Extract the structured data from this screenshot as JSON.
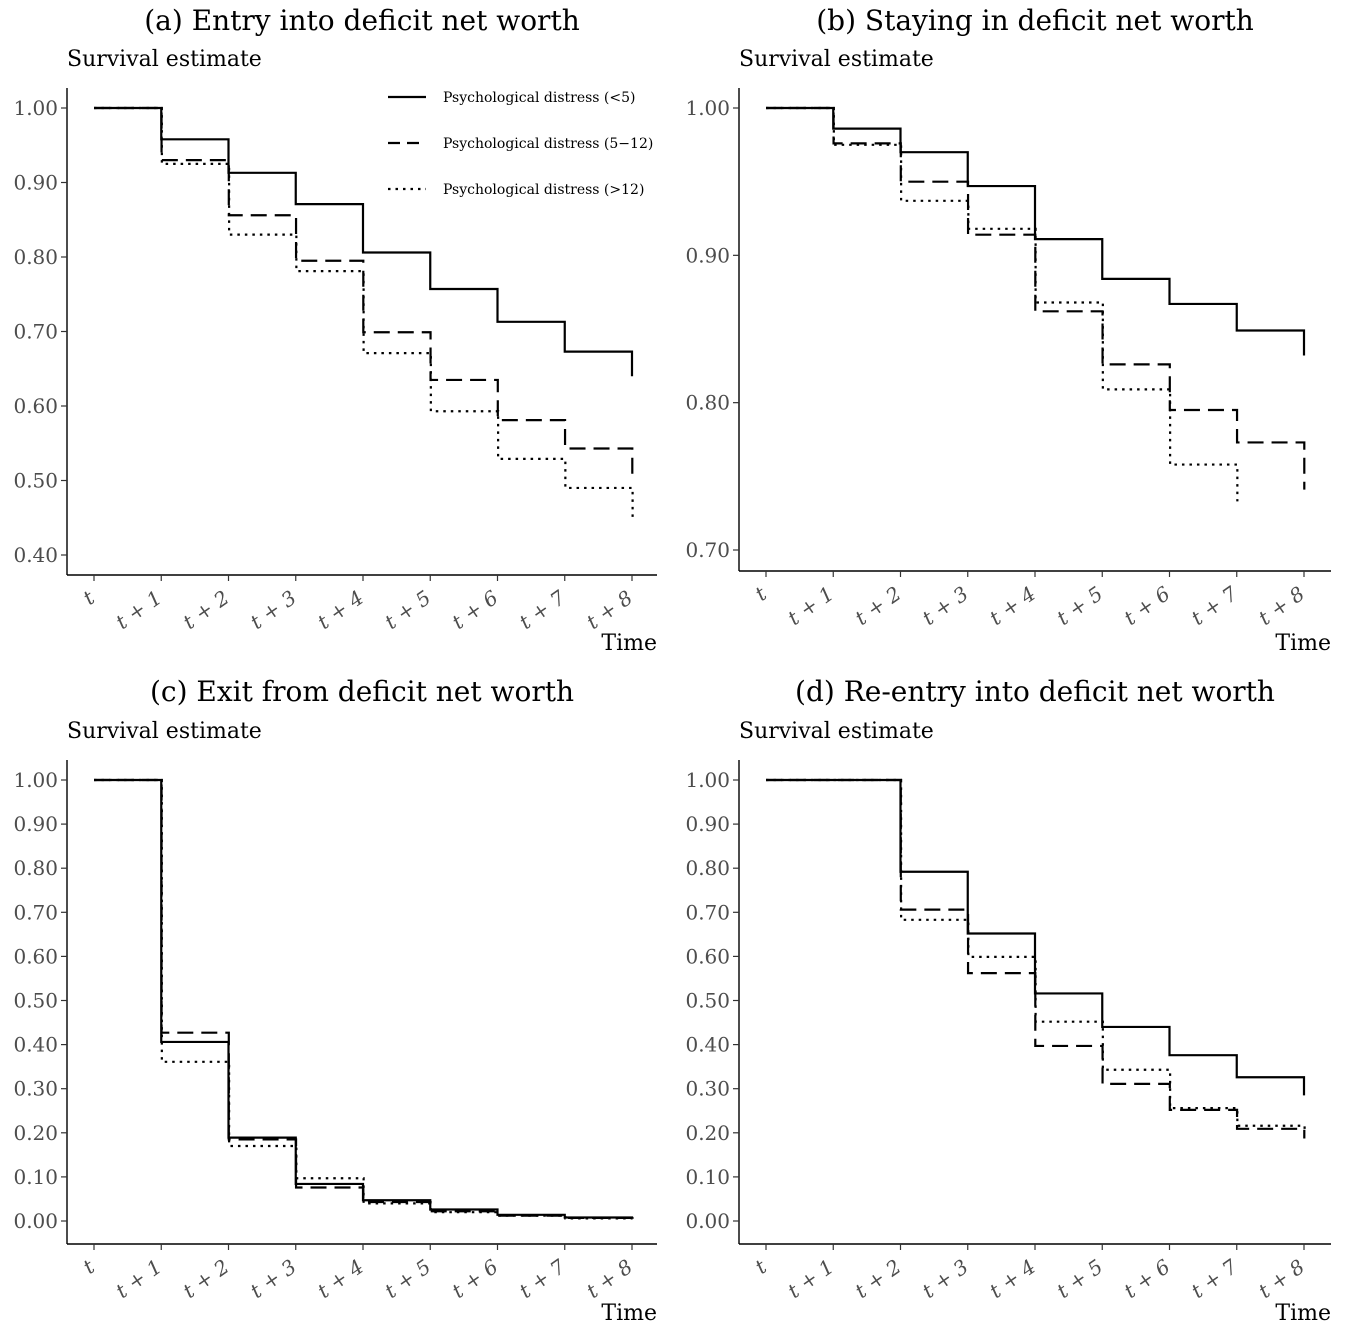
{
  "chart_data": [
    {
      "type": "line",
      "title": "(a) Entry into deficit net worth",
      "ylabel": "Survival estimate",
      "xlabel": "Time",
      "x": [
        "t",
        "t + 1",
        "t + 2",
        "t + 3",
        "t + 4",
        "t + 5",
        "t + 6",
        "t + 7",
        "t + 8"
      ],
      "ylim": [
        0.4,
        1.0
      ],
      "yticks": [
        "0.40",
        "0.50",
        "0.60",
        "0.70",
        "0.80",
        "0.90",
        "1.00"
      ],
      "legend": "top-right",
      "series": [
        {
          "name": "Psychological distress (<5)",
          "dash": "solid",
          "values": [
            1.0,
            0.958,
            0.913,
            0.871,
            0.806,
            0.757,
            0.713,
            0.673,
            0.64
          ]
        },
        {
          "name": "Psychological distress (5−12)",
          "dash": "dashed",
          "values": [
            1.0,
            0.93,
            0.856,
            0.795,
            0.699,
            0.635,
            0.581,
            0.543,
            0.505
          ]
        },
        {
          "name": "Psychological distress (>12)",
          "dash": "dotted",
          "values": [
            1.0,
            0.925,
            0.83,
            0.781,
            0.671,
            0.593,
            0.529,
            0.49,
            0.445
          ]
        }
      ]
    },
    {
      "type": "line",
      "title": "(b) Staying in deficit net worth",
      "ylabel": "Survival estimate",
      "xlabel": "Time",
      "x": [
        "t",
        "t + 1",
        "t + 2",
        "t + 3",
        "t + 4",
        "t + 5",
        "t + 6",
        "t + 7",
        "t + 8"
      ],
      "ylim": [
        0.7,
        1.0
      ],
      "yticks": [
        "0.70",
        "0.80",
        "0.90",
        "1.00"
      ],
      "series": [
        {
          "name": "Psychological distress (<5)",
          "dash": "solid",
          "values": [
            1.0,
            0.986,
            0.97,
            0.947,
            0.911,
            0.884,
            0.867,
            0.849,
            0.832
          ]
        },
        {
          "name": "Psychological distress (5−12)",
          "dash": "dashed",
          "values": [
            1.0,
            0.976,
            0.95,
            0.914,
            0.862,
            0.826,
            0.795,
            0.773,
            0.741
          ]
        },
        {
          "name": "Psychological distress (>12)",
          "dash": "dotted",
          "values": [
            1.0,
            0.975,
            0.937,
            0.918,
            0.868,
            0.809,
            0.758,
            0.733,
            null
          ]
        }
      ]
    },
    {
      "type": "line",
      "title": "(c) Exit from deficit net worth",
      "ylabel": "Survival estimate",
      "xlabel": "Time",
      "x": [
        "t",
        "t + 1",
        "t + 2",
        "t + 3",
        "t + 4",
        "t + 5",
        "t + 6",
        "t + 7",
        "t + 8"
      ],
      "ylim": [
        0.0,
        1.0
      ],
      "yticks": [
        "0.00",
        "0.10",
        "0.20",
        "0.30",
        "0.40",
        "0.50",
        "0.60",
        "0.70",
        "0.80",
        "0.90",
        "1.00"
      ],
      "series": [
        {
          "name": "Psychological distress (<5)",
          "dash": "solid",
          "values": [
            1.0,
            0.406,
            0.189,
            0.084,
            0.047,
            0.026,
            0.014,
            0.008,
            0.006
          ]
        },
        {
          "name": "Psychological distress (5−12)",
          "dash": "dashed",
          "values": [
            1.0,
            0.427,
            0.185,
            0.076,
            0.043,
            0.022,
            0.012,
            0.007,
            0.006
          ]
        },
        {
          "name": "Psychological distress (>12)",
          "dash": "dotted",
          "values": [
            1.0,
            0.361,
            0.17,
            0.097,
            0.04,
            0.02,
            0.012,
            0.006,
            0.005
          ]
        }
      ]
    },
    {
      "type": "line",
      "title": "(d) Re-entry into deficit net worth",
      "ylabel": "Survival estimate",
      "xlabel": "Time",
      "x": [
        "t",
        "t + 1",
        "t + 2",
        "t + 3",
        "t + 4",
        "t + 5",
        "t + 6",
        "t + 7",
        "t + 8"
      ],
      "ylim": [
        0.0,
        1.0
      ],
      "yticks": [
        "0.00",
        "0.10",
        "0.20",
        "0.30",
        "0.40",
        "0.50",
        "0.60",
        "0.70",
        "0.80",
        "0.90",
        "1.00"
      ],
      "series": [
        {
          "name": "Psychological distress (<5)",
          "dash": "solid",
          "values": [
            1.0,
            1.0,
            0.792,
            0.652,
            0.516,
            0.44,
            0.376,
            0.326,
            0.285
          ]
        },
        {
          "name": "Psychological distress (5−12)",
          "dash": "dashed",
          "values": [
            1.0,
            1.0,
            0.706,
            0.562,
            0.397,
            0.311,
            0.252,
            0.209,
            0.187
          ]
        },
        {
          "name": "Psychological distress (>12)",
          "dash": "dotted",
          "values": [
            1.0,
            1.0,
            0.683,
            0.599,
            0.452,
            0.343,
            0.256,
            0.216,
            0.2
          ]
        }
      ]
    }
  ]
}
